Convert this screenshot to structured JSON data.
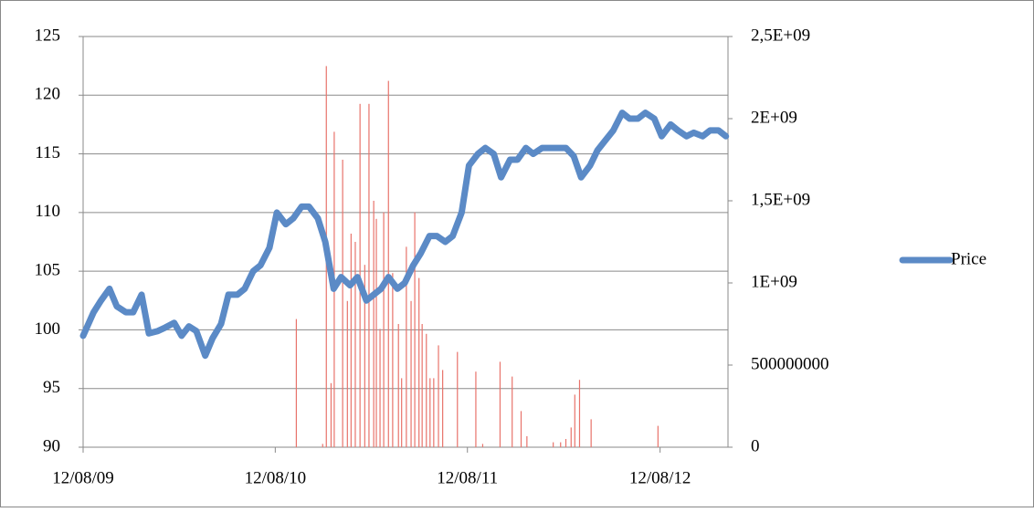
{
  "chart_data": {
    "type": "line",
    "x": [
      "2009-08-12",
      "2009-09-01",
      "2009-09-15",
      "2009-10-01",
      "2009-10-15",
      "2009-11-01",
      "2009-11-15",
      "2009-12-01",
      "2009-12-15",
      "2010-01-01",
      "2010-01-15",
      "2010-02-01",
      "2010-02-15",
      "2010-03-01",
      "2010-03-15",
      "2010-04-01",
      "2010-04-15",
      "2010-05-01",
      "2010-05-15",
      "2010-06-01",
      "2010-06-15",
      "2010-07-01",
      "2010-07-15",
      "2010-08-01",
      "2010-08-15",
      "2010-09-01",
      "2010-09-15",
      "2010-10-01",
      "2010-10-15",
      "2010-11-01",
      "2010-11-15",
      "2010-12-01",
      "2010-12-15",
      "2011-01-01",
      "2011-01-15",
      "2011-02-01",
      "2011-02-15",
      "2011-03-01",
      "2011-03-15",
      "2011-04-01",
      "2011-04-15",
      "2011-05-01",
      "2011-05-15",
      "2011-06-01",
      "2011-06-15",
      "2011-07-01",
      "2011-07-15",
      "2011-08-01",
      "2011-08-15",
      "2011-09-01",
      "2011-09-15",
      "2011-10-01",
      "2011-10-15",
      "2011-11-01",
      "2011-11-15",
      "2011-12-01",
      "2011-12-15",
      "2012-01-01",
      "2012-01-15",
      "2012-02-01",
      "2012-02-15",
      "2012-03-01",
      "2012-03-15",
      "2012-04-01",
      "2012-04-15",
      "2012-05-01",
      "2012-05-15",
      "2012-06-01",
      "2012-06-15",
      "2012-07-01",
      "2012-07-15",
      "2012-08-01",
      "2012-08-15",
      "2012-09-01",
      "2012-09-15",
      "2012-10-01",
      "2012-10-15",
      "2012-11-01",
      "2012-11-15",
      "2012-12-01",
      "2012-12-15"
    ],
    "series": [
      {
        "name": "Price",
        "color": "#5b8ac6",
        "values": [
          99.5,
          101.5,
          102.5,
          103.5,
          102,
          101.5,
          101.5,
          103,
          99.7,
          99.9,
          100.2,
          100.6,
          99.5,
          100.3,
          99.9,
          97.8,
          99.3,
          100.5,
          103,
          103,
          103.5,
          105,
          105.5,
          107,
          110,
          109,
          109.5,
          110.5,
          110.5,
          109.5,
          107.5,
          103.5,
          104.5,
          103.8,
          104.5,
          102.5,
          103,
          103.5,
          104.5,
          103.5,
          104,
          105.5,
          106.5,
          108,
          108,
          107.5,
          108,
          110,
          114,
          115,
          115.5,
          115,
          113,
          114.5,
          114.5,
          115.5,
          115,
          115.5,
          115.5,
          115.5,
          115.5,
          114.8,
          113,
          114,
          115.3,
          116.2,
          117,
          118.5,
          118,
          118,
          118.5,
          118,
          116.5,
          117.5,
          117,
          116.5,
          116.8,
          116.5,
          117,
          117,
          116.5
        ]
      },
      {
        "color": "#e8736b",
        "axis": "y2",
        "x": [
          "2010-09-21",
          "2010-11-10",
          "2010-11-17",
          "2010-11-26",
          "2010-12-02",
          "2010-12-18",
          "2010-12-27",
          "2011-01-03",
          "2011-01-11",
          "2011-01-20",
          "2011-01-29",
          "2011-02-06",
          "2011-02-15",
          "2011-02-20",
          "2011-02-27",
          "2011-03-06",
          "2011-03-15",
          "2011-03-23",
          "2011-04-03",
          "2011-04-09",
          "2011-04-18",
          "2011-04-27",
          "2011-05-04",
          "2011-05-12",
          "2011-05-18",
          "2011-05-26",
          "2011-06-02",
          "2011-06-09",
          "2011-06-18",
          "2011-06-26",
          "2011-07-24",
          "2011-08-28",
          "2011-09-10",
          "2011-10-13",
          "2011-11-05",
          "2011-11-22",
          "2011-12-03",
          "2012-01-22",
          "2012-02-05",
          "2012-02-15",
          "2012-02-25",
          "2012-03-03",
          "2012-03-12",
          "2012-04-03",
          "2012-08-08"
        ],
        "values": [
          780000000,
          20000000,
          2320000000,
          390000000,
          1920000000,
          1750000000,
          890000000,
          1300000000,
          1250000000,
          2090000000,
          1110000000,
          2090000000,
          1500000000,
          1390000000,
          720000000,
          1430000000,
          2230000000,
          1060000000,
          750000000,
          420000000,
          1220000000,
          890000000,
          1430000000,
          1030000000,
          750000000,
          690000000,
          420000000,
          420000000,
          620000000,
          470000000,
          580000000,
          460000000,
          20000000,
          520000000,
          430000000,
          220000000,
          67000000,
          30000000,
          30000000,
          50000000,
          120000000,
          320000000,
          410000000,
          170000000,
          130000000
        ]
      }
    ],
    "xlim": [
      "2009-08-12",
      "2012-12-19"
    ],
    "xticks": [
      {
        "value": "2009-08-12",
        "label": "12/08/09"
      },
      {
        "value": "2010-08-12",
        "label": "12/08/10"
      },
      {
        "value": "2011-08-12",
        "label": "12/08/11"
      },
      {
        "value": "2012-08-12",
        "label": "12/08/12"
      }
    ],
    "ylim": [
      90,
      125
    ],
    "yticks": [
      90,
      95,
      100,
      105,
      110,
      115,
      120,
      125
    ],
    "y2lim": [
      0,
      2500000000
    ],
    "y2ticks": [
      0,
      500000000,
      {
        "value": 1000000000,
        "label": "1E+09"
      },
      {
        "value": 1500000000,
        "label": "1,5E+09"
      },
      {
        "value": 2000000000,
        "label": "2E+09"
      },
      {
        "value": 2500000000,
        "label": "2,5E+09"
      }
    ],
    "grid": true,
    "legend": "right"
  }
}
